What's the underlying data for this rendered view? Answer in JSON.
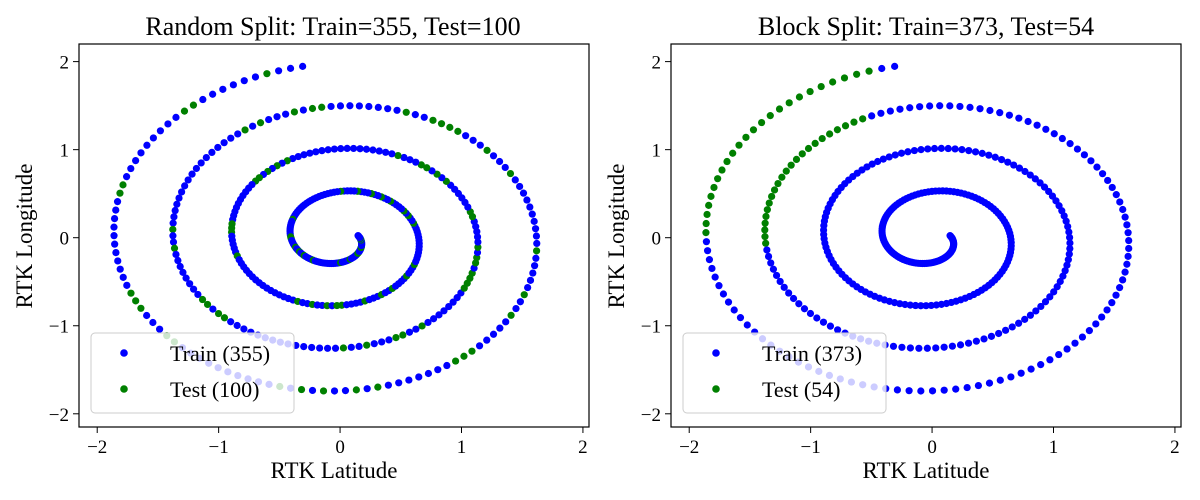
{
  "chart_data": [
    {
      "type": "scatter",
      "title": "Random Split: Train=355, Test=100",
      "xlabel": "RTK Latitude",
      "ylabel": "RTK Longitude",
      "xlim": [
        -2.15,
        2.05
      ],
      "ylim": [
        -2.15,
        2.2
      ],
      "xticks": [
        -2,
        -1,
        0,
        1,
        2
      ],
      "yticks": [
        -2,
        -1,
        0,
        1,
        2
      ],
      "tick_labels_x": [
        "−2",
        "−1",
        "0",
        "1",
        "2"
      ],
      "tick_labels_y": [
        "−2",
        "−1",
        "0",
        "1",
        "2"
      ],
      "legend": "lower-left",
      "path": {
        "shape": "spiral",
        "r_outer": 1.97,
        "r_inner": 0.15,
        "turns": 3.75,
        "center": [
          0.0,
          0.0
        ]
      },
      "series": [
        {
          "name": "Train (355)",
          "count": 355,
          "color": "#0000ff"
        },
        {
          "name": "Test (100)",
          "count": 100,
          "color": "#008000"
        }
      ],
      "split": "random"
    },
    {
      "type": "scatter",
      "title": "Block Split: Train=373, Test=54",
      "xlabel": "RTK Latitude",
      "ylabel": "RTK Longitude",
      "xlim": [
        -2.15,
        2.05
      ],
      "ylim": [
        -2.15,
        2.2
      ],
      "xticks": [
        -2,
        -1,
        0,
        1,
        2
      ],
      "yticks": [
        -2,
        -1,
        0,
        1,
        2
      ],
      "tick_labels_x": [
        "−2",
        "−1",
        "0",
        "1",
        "2"
      ],
      "tick_labels_y": [
        "−2",
        "−1",
        "0",
        "1",
        "2"
      ],
      "legend": "lower-left",
      "path": {
        "shape": "spiral",
        "r_outer": 1.97,
        "r_inner": 0.15,
        "turns": 3.75,
        "center": [
          0.0,
          0.0
        ]
      },
      "series": [
        {
          "name": "Train (373)",
          "count": 373,
          "color": "#0000ff"
        },
        {
          "name": "Test (54)",
          "count": 54,
          "color": "#008000"
        }
      ],
      "split": "block",
      "test_blocks": [
        {
          "angle_deg_from": 105,
          "angle_deg_to": 180,
          "radius": 1.95
        },
        {
          "angle_deg_from": 110,
          "angle_deg_to": 185,
          "radius": 1.3
        },
        {
          "angle_deg_from": 60,
          "angle_deg_to": 100,
          "radius": 0.2
        }
      ]
    }
  ]
}
